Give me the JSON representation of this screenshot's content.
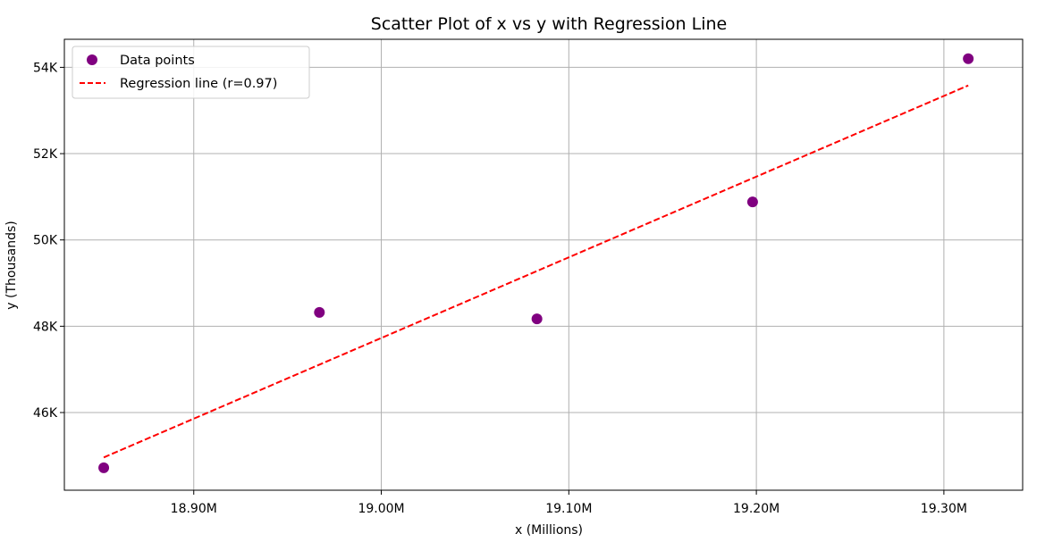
{
  "chart_data": {
    "type": "scatter",
    "title": "Scatter Plot of x vs y with Regression Line",
    "xlabel": "x (Millions)",
    "ylabel": "y (Thousands)",
    "xlim": [
      18.831,
      19.342
    ],
    "ylim": [
      44200,
      54650
    ],
    "grid": true,
    "legend_position": "top-left",
    "x_ticks": [
      {
        "value": 18.9,
        "label": "18.90M"
      },
      {
        "value": 19.0,
        "label": "19.00M"
      },
      {
        "value": 19.1,
        "label": "19.10M"
      },
      {
        "value": 19.2,
        "label": "19.20M"
      },
      {
        "value": 19.3,
        "label": "19.30M"
      }
    ],
    "y_ticks": [
      {
        "value": 46000,
        "label": "46K"
      },
      {
        "value": 48000,
        "label": "48K"
      },
      {
        "value": 50000,
        "label": "50K"
      },
      {
        "value": 52000,
        "label": "52K"
      },
      {
        "value": 54000,
        "label": "54K"
      }
    ],
    "series": [
      {
        "name": "Data points",
        "type": "scatter",
        "color": "#800080",
        "x": [
          18.852,
          18.967,
          19.083,
          19.198,
          19.313
        ],
        "y": [
          44720,
          48320,
          48170,
          50880,
          54200
        ]
      },
      {
        "name": "Regression line (r=0.97)",
        "type": "line",
        "style": "dashed",
        "color": "#ff0000",
        "x": [
          18.852,
          19.313
        ],
        "y": [
          44960,
          53580
        ]
      }
    ]
  }
}
